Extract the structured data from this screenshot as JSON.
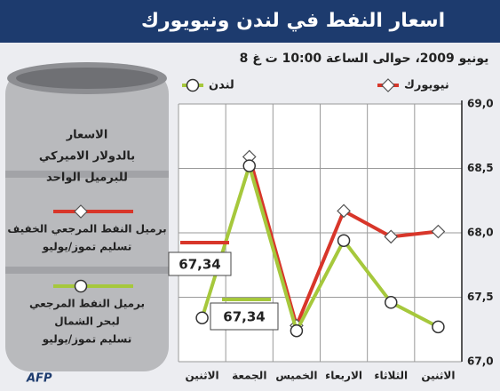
{
  "chart_data": {
    "type": "line",
    "title": "اسعار النفط في لندن ونيويورك",
    "subtitle": "8 يونيو 2009، حوالى الساعة 10:00 ت غ",
    "categories": [
      "الاثنين",
      "الجمعة",
      "الخميس",
      "الاربعاء",
      "الثلاثاء",
      "الاثنين"
    ],
    "series": [
      {
        "name": "نيويورك",
        "color": "#d8362a",
        "marker": "diamond",
        "values": [
          null,
          68.59,
          67.28,
          68.17,
          67.97,
          68.01
        ],
        "description": [
          "برميل النفط المرجعي الخفيف",
          "تسليم تموز/يوليو"
        ]
      },
      {
        "name": "لندن",
        "color": "#a6c83c",
        "marker": "circle",
        "values": [
          67.34,
          68.52,
          67.24,
          67.94,
          67.46,
          67.27
        ],
        "description": [
          "برميل النفط المرجعي",
          "لبحر الشمال",
          "تسليم تموز/يوليو"
        ]
      }
    ],
    "annotations": [
      "67,34",
      "67,34"
    ],
    "unit_note": [
      "الاسعار",
      "بالدولار الاميركي",
      "للبرميل الواحد"
    ],
    "source": "AFP",
    "ylim": [
      67,
      69
    ],
    "yticks": [
      {
        "value": 67,
        "label": "67,0"
      },
      {
        "value": 67.5,
        "label": "67,5"
      },
      {
        "value": 68,
        "label": "68,0"
      },
      {
        "value": 68.5,
        "label": "68,5"
      },
      {
        "value": 69,
        "label": "69,0"
      }
    ],
    "grid": true
  }
}
